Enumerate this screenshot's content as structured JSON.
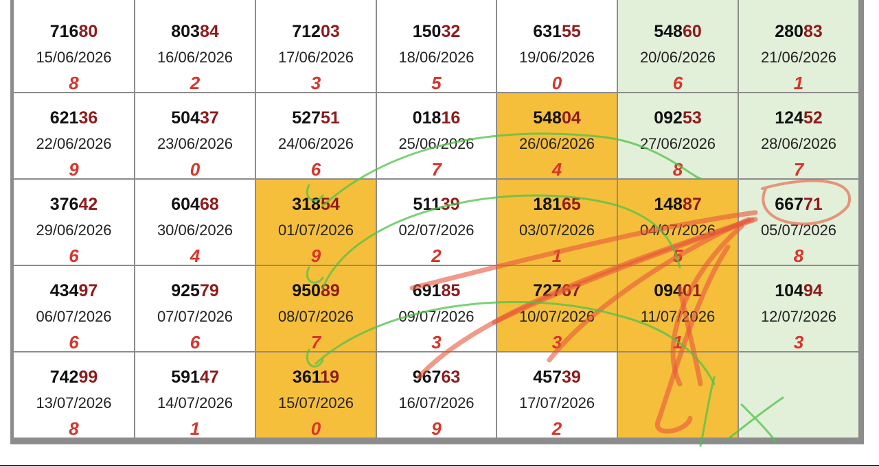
{
  "table": {
    "rows": [
      [
        {
          "head": "716",
          "tail": "80",
          "date": "15/06/2026",
          "digit": "8",
          "bg": "#ffffff"
        },
        {
          "head": "803",
          "tail": "84",
          "date": "16/06/2026",
          "digit": "2",
          "bg": "#ffffff"
        },
        {
          "head": "712",
          "tail": "03",
          "date": "17/06/2026",
          "digit": "3",
          "bg": "#ffffff"
        },
        {
          "head": "150",
          "tail": "32",
          "date": "18/06/2026",
          "digit": "5",
          "bg": "#ffffff"
        },
        {
          "head": "631",
          "tail": "55",
          "date": "19/06/2026",
          "digit": "0",
          "bg": "#ffffff"
        },
        {
          "head": "548",
          "tail": "60",
          "date": "20/06/2026",
          "digit": "6",
          "bg": "#e2efd9"
        },
        {
          "head": "280",
          "tail": "83",
          "date": "21/06/2026",
          "digit": "1",
          "bg": "#e2efd9"
        }
      ],
      [
        {
          "head": "621",
          "tail": "36",
          "date": "22/06/2026",
          "digit": "9",
          "bg": "#ffffff"
        },
        {
          "head": "504",
          "tail": "37",
          "date": "23/06/2026",
          "digit": "0",
          "bg": "#ffffff"
        },
        {
          "head": "527",
          "tail": "51",
          "date": "24/06/2026",
          "digit": "6",
          "bg": "#ffffff"
        },
        {
          "head": "018",
          "tail": "16",
          "date": "25/06/2026",
          "digit": "7",
          "bg": "#ffffff"
        },
        {
          "head": "548",
          "tail": "04",
          "date": "26/06/2026",
          "digit": "4",
          "bg": "#f5bf3c"
        },
        {
          "head": "092",
          "tail": "53",
          "date": "27/06/2026",
          "digit": "8",
          "bg": "#e2efd9"
        },
        {
          "head": "124",
          "tail": "52",
          "date": "28/06/2026",
          "digit": "7",
          "bg": "#e2efd9"
        }
      ],
      [
        {
          "head": "376",
          "tail": "42",
          "date": "29/06/2026",
          "digit": "6",
          "bg": "#ffffff"
        },
        {
          "head": "604",
          "tail": "68",
          "date": "30/06/2026",
          "digit": "4",
          "bg": "#ffffff"
        },
        {
          "head": "318",
          "tail": "54",
          "date": "01/07/2026",
          "digit": "9",
          "bg": "#f5bf3c"
        },
        {
          "head": "511",
          "tail": "39",
          "date": "02/07/2026",
          "digit": "2",
          "bg": "#ffffff"
        },
        {
          "head": "181",
          "tail": "65",
          "date": "03/07/2026",
          "digit": "1",
          "bg": "#f5bf3c"
        },
        {
          "head": "148",
          "tail": "87",
          "date": "04/07/2026",
          "digit": "5",
          "bg": "#f5bf3c"
        },
        {
          "head": "667",
          "tail": "71",
          "date": "05/07/2026",
          "digit": "8",
          "bg": "#e2efd9"
        }
      ],
      [
        {
          "head": "434",
          "tail": "97",
          "date": "06/07/2026",
          "digit": "6",
          "bg": "#ffffff"
        },
        {
          "head": "925",
          "tail": "79",
          "date": "07/07/2026",
          "digit": "6",
          "bg": "#ffffff"
        },
        {
          "head": "950",
          "tail": "89",
          "date": "08/07/2026",
          "digit": "7",
          "bg": "#f5bf3c"
        },
        {
          "head": "691",
          "tail": "85",
          "date": "09/07/2026",
          "digit": "3",
          "bg": "#ffffff"
        },
        {
          "head": "727",
          "tail": "67",
          "date": "10/07/2026",
          "digit": "3",
          "bg": "#f5bf3c"
        },
        {
          "head": "094",
          "tail": "01",
          "date": "11/07/2026",
          "digit": "1",
          "bg": "#f5bf3c"
        },
        {
          "head": "104",
          "tail": "94",
          "date": "12/07/2026",
          "digit": "3",
          "bg": "#e2efd9"
        }
      ],
      [
        {
          "head": "742",
          "tail": "99",
          "date": "13/07/2026",
          "digit": "8",
          "bg": "#ffffff"
        },
        {
          "head": "591",
          "tail": "47",
          "date": "14/07/2026",
          "digit": "1",
          "bg": "#ffffff"
        },
        {
          "head": "361",
          "tail": "19",
          "date": "15/07/2026",
          "digit": "0",
          "bg": "#f5bf3c"
        },
        {
          "head": "967",
          "tail": "63",
          "date": "16/07/2026",
          "digit": "9",
          "bg": "#ffffff"
        },
        {
          "head": "457",
          "tail": "39",
          "date": "17/07/2026",
          "digit": "2",
          "bg": "#ffffff"
        },
        {
          "bg": "#f5bf3c"
        },
        {
          "bg": "#e2efd9"
        }
      ]
    ]
  }
}
